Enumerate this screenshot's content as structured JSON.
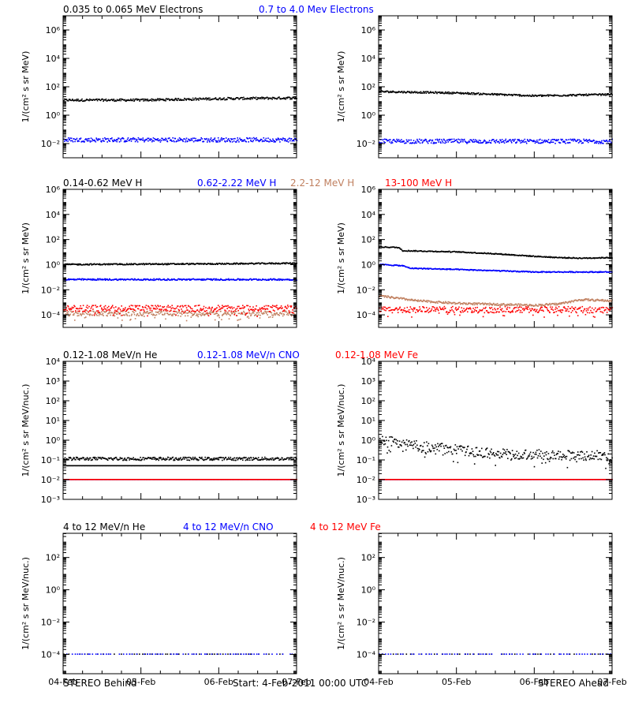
{
  "footer": {
    "left": "STEREO Behind",
    "center": "Start:  4-Feb-2011 00:00 UTC",
    "right": "STEREO Ahead"
  },
  "x_tick_labels": [
    "04-Feb",
    "05-Feb",
    "06-Feb",
    "07-Feb"
  ],
  "chart_data": [
    {
      "type": "scatter",
      "row": 1,
      "legend": [
        {
          "name": "0.035 to 0.065 MeV Electrons",
          "color": "#000000"
        },
        {
          "name": "0.7 to 4.0 Mev Electrons",
          "color": "#0000ff"
        }
      ],
      "ylabel": "1/(cm² s sr MeV)",
      "y_log_range": [
        -3,
        7
      ],
      "y_ticks": [
        {
          "exp": 6,
          "label": "10⁶"
        },
        {
          "exp": 4,
          "label": "10⁴"
        },
        {
          "exp": 2,
          "label": "10²"
        },
        {
          "exp": 0,
          "label": "10⁰"
        },
        {
          "exp": -2,
          "label": "10⁻²"
        }
      ],
      "xlim_days": [
        0,
        3
      ],
      "panels": [
        {
          "name": "STEREO Behind",
          "series": [
            {
              "name": "0.035 to 0.065 MeV Electrons",
              "color": "#000000",
              "profile": [
                [
                  0,
                  1.05
                ],
                [
                  1,
                  1.05
                ],
                [
                  1.5,
                  1.1
                ],
                [
                  2,
                  1.15
                ],
                [
                  3,
                  1.2
                ]
              ],
              "jitter": 0.08
            },
            {
              "name": "0.7 to 4.0 Mev Electrons",
              "color": "#0000ff",
              "profile": [
                [
                  0,
                  -1.75
                ],
                [
                  3,
                  -1.75
                ]
              ],
              "jitter": 0.15
            }
          ]
        },
        {
          "name": "STEREO Ahead",
          "series": [
            {
              "name": "0.035 to 0.065 MeV Electrons",
              "color": "#000000",
              "profile": [
                [
                  0,
                  1.65
                ],
                [
                  1,
                  1.55
                ],
                [
                  2,
                  1.35
                ],
                [
                  3,
                  1.45
                ]
              ],
              "jitter": 0.06
            },
            {
              "name": "0.7 to 4.0 Mev Electrons",
              "color": "#0000ff",
              "profile": [
                [
                  0,
                  -1.85
                ],
                [
                  3,
                  -1.85
                ]
              ],
              "jitter": 0.15
            }
          ]
        }
      ]
    },
    {
      "type": "scatter",
      "row": 2,
      "legend": [
        {
          "name": "0.14-0.62 MeV H",
          "color": "#000000"
        },
        {
          "name": "0.62-2.22 MeV H",
          "color": "#0000ff"
        },
        {
          "name": "2.2-12 MeV H",
          "color": "#c08060"
        },
        {
          "name": "13-100 MeV H",
          "color": "#ff0000"
        }
      ],
      "ylabel": "1/(cm² s sr MeV)",
      "y_log_range": [
        -5,
        6
      ],
      "y_ticks": [
        {
          "exp": 6,
          "label": "10⁶"
        },
        {
          "exp": 4,
          "label": "10⁴"
        },
        {
          "exp": 2,
          "label": "10²"
        },
        {
          "exp": 0,
          "label": "10⁰"
        },
        {
          "exp": -2,
          "label": "10⁻²"
        },
        {
          "exp": -4,
          "label": "10⁻⁴"
        }
      ],
      "xlim_days": [
        0,
        3
      ],
      "panels": [
        {
          "name": "STEREO Behind",
          "series": [
            {
              "name": "0.14-0.62 MeV H",
              "color": "#000000",
              "profile": [
                [
                  0,
                  0.0
                ],
                [
                  2,
                  0.05
                ],
                [
                  3,
                  0.1
                ]
              ],
              "jitter": 0.05
            },
            {
              "name": "0.62-2.22 MeV H",
              "color": "#0000ff",
              "profile": [
                [
                  0,
                  -1.2
                ],
                [
                  3,
                  -1.2
                ]
              ],
              "jitter": 0.06
            },
            {
              "name": "2.2-12 MeV H",
              "color": "#c08060",
              "profile": [
                [
                  0,
                  -3.9
                ],
                [
                  3,
                  -3.9
                ]
              ],
              "jitter": 0.2
            },
            {
              "name": "13-100 MeV H",
              "color": "#ff0000",
              "profile": [
                [
                  0,
                  -3.5
                ],
                [
                  3,
                  -3.5
                ]
              ],
              "jitter": 0.25
            }
          ]
        },
        {
          "name": "STEREO Ahead",
          "series": [
            {
              "name": "0.14-0.62 MeV H",
              "color": "#000000",
              "profile": [
                [
                  0,
                  1.4
                ],
                [
                  0.25,
                  1.35
                ],
                [
                  0.3,
                  1.1
                ],
                [
                  1,
                  1.0
                ],
                [
                  1.5,
                  0.85
                ],
                [
                  2,
                  0.65
                ],
                [
                  2.3,
                  0.55
                ],
                [
                  2.6,
                  0.5
                ],
                [
                  3,
                  0.55
                ]
              ],
              "jitter": 0.04
            },
            {
              "name": "0.62-2.22 MeV H",
              "color": "#0000ff",
              "profile": [
                [
                  0,
                  0.0
                ],
                [
                  0.3,
                  -0.1
                ],
                [
                  0.4,
                  -0.3
                ],
                [
                  1,
                  -0.4
                ],
                [
                  2,
                  -0.6
                ],
                [
                  3,
                  -0.6
                ]
              ],
              "jitter": 0.04
            },
            {
              "name": "2.2-12 MeV H",
              "color": "#c08060",
              "profile": [
                [
                  0,
                  -2.5
                ],
                [
                  0.5,
                  -2.9
                ],
                [
                  1,
                  -3.1
                ],
                [
                  2,
                  -3.25
                ],
                [
                  2.3,
                  -3.15
                ],
                [
                  2.6,
                  -2.8
                ],
                [
                  3,
                  -2.9
                ]
              ],
              "jitter": 0.08
            },
            {
              "name": "13-100 MeV H",
              "color": "#ff0000",
              "profile": [
                [
                  0,
                  -3.6
                ],
                [
                  3,
                  -3.6
                ]
              ],
              "jitter": 0.25
            }
          ]
        }
      ]
    },
    {
      "type": "scatter",
      "row": 3,
      "legend": [
        {
          "name": "0.12-1.08 MeV/n He",
          "color": "#000000"
        },
        {
          "name": "0.12-1.08 MeV/n CNO",
          "color": "#0000ff"
        },
        {
          "name": "0.12-1.08 MeV Fe",
          "color": "#ff0000"
        }
      ],
      "ylabel": "1/(cm² s sr MeV/nuc.)",
      "y_log_range": [
        -3,
        4
      ],
      "y_ticks": [
        {
          "exp": 4,
          "label": "10⁴"
        },
        {
          "exp": 3,
          "label": "10³"
        },
        {
          "exp": 2,
          "label": "10²"
        },
        {
          "exp": 1,
          "label": "10¹"
        },
        {
          "exp": 0,
          "label": "10⁰"
        },
        {
          "exp": -1,
          "label": "10⁻¹"
        },
        {
          "exp": -2,
          "label": "10⁻²"
        },
        {
          "exp": -3,
          "label": "10⁻³"
        }
      ],
      "xlim_days": [
        0,
        3
      ],
      "panels": [
        {
          "name": "STEREO Behind",
          "series": [
            {
              "name": "0.12-1.08 MeV/n He",
              "color": "#000000",
              "profile": [
                [
                  0,
                  -1.3
                ],
                [
                  3,
                  -1.3
                ]
              ],
              "jitter": 0.0
            },
            {
              "name": "0.12-1.08 MeV/n He",
              "color": "#000000",
              "profile": [
                [
                  0,
                  -0.95
                ],
                [
                  3,
                  -0.95
                ]
              ],
              "jitter": 0.08
            },
            {
              "name": "0.12-1.08 MeV/n CNO",
              "color": "#0000ff",
              "profile": [
                [
                  0,
                  -2.0
                ],
                [
                  3,
                  -2.0
                ]
              ],
              "jitter": 0.0
            },
            {
              "name": "0.12-1.08 MeV Fe",
              "color": "#ff0000",
              "profile": [
                [
                  0,
                  -2.0
                ],
                [
                  3,
                  -2.0
                ]
              ],
              "jitter": 0.0
            }
          ]
        },
        {
          "name": "STEREO Ahead",
          "series": [
            {
              "name": "0.12-1.08 MeV/n He",
              "color": "#000000",
              "profile": [
                [
                  0,
                  0.05
                ],
                [
                  0.5,
                  -0.3
                ],
                [
                  1,
                  -0.5
                ],
                [
                  1.5,
                  -0.7
                ],
                [
                  3,
                  -0.8
                ]
              ],
              "jitter": 0.25
            },
            {
              "name": "0.12-1.08 MeV/n CNO",
              "color": "#0000ff",
              "profile": [
                [
                  0,
                  -2.0
                ],
                [
                  3,
                  -2.0
                ]
              ],
              "jitter": 0.0
            },
            {
              "name": "0.12-1.08 MeV Fe",
              "color": "#ff0000",
              "profile": [
                [
                  0,
                  -2.0
                ],
                [
                  3,
                  -2.0
                ]
              ],
              "jitter": 0.0
            }
          ]
        }
      ]
    },
    {
      "type": "scatter",
      "row": 4,
      "legend": [
        {
          "name": "4 to 12 MeV/n He",
          "color": "#000000"
        },
        {
          "name": "4 to 12 MeV/n CNO",
          "color": "#0000ff"
        },
        {
          "name": "4 to 12 MeV Fe",
          "color": "#ff0000"
        }
      ],
      "ylabel": "1/(cm² s sr MeV/nuc.)",
      "y_log_range": [
        -5.2,
        3.5
      ],
      "y_ticks": [
        {
          "exp": 2,
          "label": "10²"
        },
        {
          "exp": 0,
          "label": "10⁰"
        },
        {
          "exp": -2,
          "label": "10⁻²"
        },
        {
          "exp": -4,
          "label": "10⁻⁴"
        }
      ],
      "xlim_days": [
        0,
        3
      ],
      "panels": [
        {
          "name": "STEREO Behind",
          "series": [
            {
              "name": "4 to 12 MeV/n He",
              "color": "#000000",
              "profile": [
                [
                  0,
                  -4.0
                ],
                [
                  3,
                  -4.0
                ]
              ],
              "jitter": 0.0,
              "sparse": true
            },
            {
              "name": "4 to 12 MeV/n CNO",
              "color": "#0000ff",
              "profile": [
                [
                  0,
                  -4.0
                ],
                [
                  3,
                  -4.0
                ]
              ],
              "jitter": 0.0,
              "sparse": true
            }
          ]
        },
        {
          "name": "STEREO Ahead",
          "series": [
            {
              "name": "4 to 12 MeV/n He",
              "color": "#000000",
              "profile": [
                [
                  0,
                  -4.0
                ],
                [
                  3,
                  -4.0
                ]
              ],
              "jitter": 0.0,
              "sparse": true
            },
            {
              "name": "4 to 12 MeV/n CNO",
              "color": "#0000ff",
              "profile": [
                [
                  0,
                  -4.0
                ],
                [
                  3,
                  -4.0
                ]
              ],
              "jitter": 0.0,
              "sparse": true
            }
          ]
        }
      ]
    }
  ]
}
